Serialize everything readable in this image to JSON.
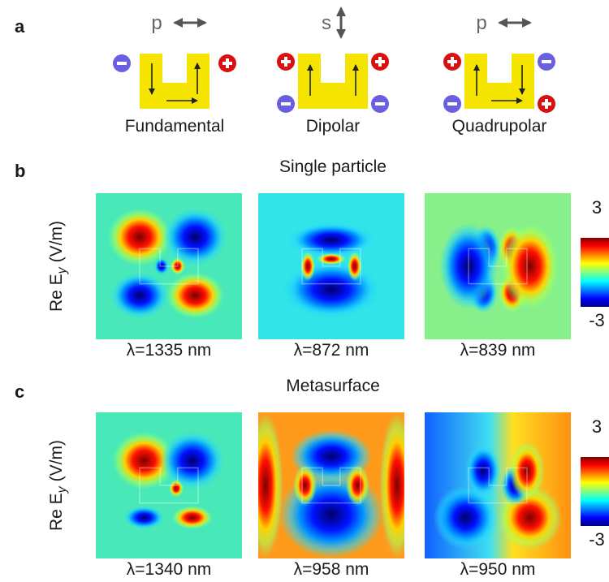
{
  "panels": [
    "a",
    "b",
    "c"
  ],
  "modes": [
    {
      "polarization": "p",
      "name": "Fundamental"
    },
    {
      "polarization": "s",
      "name": "Dipolar"
    },
    {
      "polarization": "p",
      "name": "Quadrupolar"
    }
  ],
  "rows": [
    {
      "title": "Single particle",
      "axis_label": [
        "Re E",
        "y",
        "(V/m)"
      ],
      "wavelengths": [
        "λ=1335 nm",
        "λ=872 nm",
        "λ=839 nm"
      ],
      "colorbar_ticks": [
        3,
        -3
      ]
    },
    {
      "title": "Metasurface",
      "axis_label": [
        "Re E",
        "y",
        "(V/m)"
      ],
      "wavelengths": [
        "λ=1340 nm",
        "λ=958 nm",
        "λ=950 nm"
      ],
      "colorbar_ticks": [
        3,
        -3
      ]
    }
  ]
}
